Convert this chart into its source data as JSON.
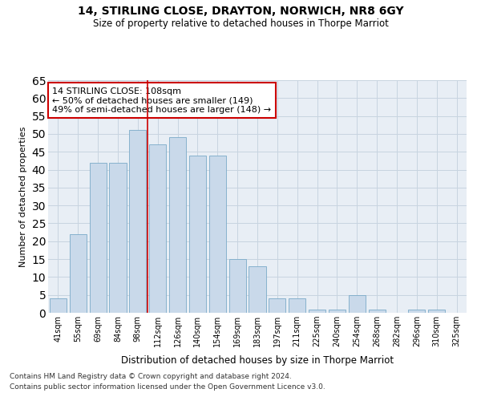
{
  "title1": "14, STIRLING CLOSE, DRAYTON, NORWICH, NR8 6GY",
  "title2": "Size of property relative to detached houses in Thorpe Marriot",
  "xlabel": "Distribution of detached houses by size in Thorpe Marriot",
  "ylabel": "Number of detached properties",
  "categories": [
    "41sqm",
    "55sqm",
    "69sqm",
    "84sqm",
    "98sqm",
    "112sqm",
    "126sqm",
    "140sqm",
    "154sqm",
    "169sqm",
    "183sqm",
    "197sqm",
    "211sqm",
    "225sqm",
    "240sqm",
    "254sqm",
    "268sqm",
    "282sqm",
    "296sqm",
    "310sqm",
    "325sqm"
  ],
  "values": [
    4,
    22,
    42,
    42,
    51,
    47,
    49,
    44,
    44,
    15,
    13,
    4,
    4,
    1,
    1,
    5,
    1,
    0,
    1,
    1,
    0
  ],
  "bar_color": "#c9d9ea",
  "bar_edge_color": "#7aaac8",
  "vline_color": "#cc0000",
  "annotation_text": "14 STIRLING CLOSE: 108sqm\n← 50% of detached houses are smaller (149)\n49% of semi-detached houses are larger (148) →",
  "annotation_box_color": "white",
  "annotation_box_edge": "#cc0000",
  "ylim": [
    0,
    65
  ],
  "yticks": [
    0,
    5,
    10,
    15,
    20,
    25,
    30,
    35,
    40,
    45,
    50,
    55,
    60,
    65
  ],
  "grid_color": "#c8d4e0",
  "bg_color": "#e8eef5",
  "footer1": "Contains HM Land Registry data © Crown copyright and database right 2024.",
  "footer2": "Contains public sector information licensed under the Open Government Licence v3.0."
}
